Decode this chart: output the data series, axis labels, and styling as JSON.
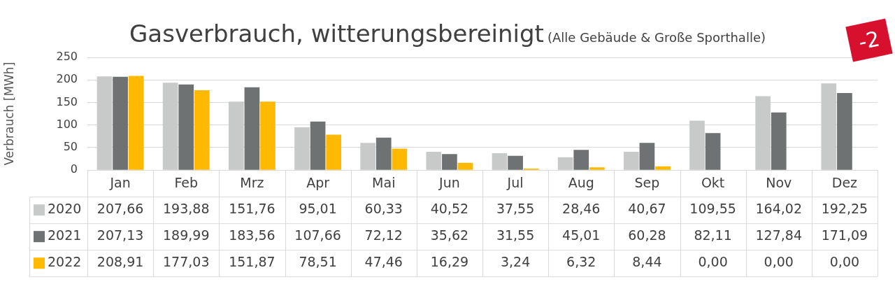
{
  "chart_data": {
    "type": "bar",
    "title": "Gasverbrauch, witterungsbereinigt",
    "subtitle": "(Alle Gebäude & Große Sporthalle)",
    "ylabel": "Verbrauch [MWh]",
    "categories": [
      "Jan",
      "Feb",
      "Mrz",
      "Apr",
      "Mai",
      "Jun",
      "Jul",
      "Aug",
      "Sep",
      "Okt",
      "Nov",
      "Dez"
    ],
    "series": [
      {
        "name": "2020",
        "color": "#c8c9c9",
        "values": [
          207.66,
          193.88,
          151.76,
          95.01,
          60.33,
          40.52,
          37.55,
          28.46,
          40.67,
          109.55,
          164.02,
          192.25
        ],
        "value_labels": [
          "207,66",
          "193,88",
          "151,76",
          "95,01",
          "60,33",
          "40,52",
          "37,55",
          "28,46",
          "40,67",
          "109,55",
          "164,02",
          "192,25"
        ]
      },
      {
        "name": "2021",
        "color": "#6f7272",
        "values": [
          207.13,
          189.99,
          183.56,
          107.66,
          72.12,
          35.62,
          31.55,
          45.01,
          60.28,
          82.11,
          127.84,
          171.09
        ],
        "value_labels": [
          "207,13",
          "189,99",
          "183,56",
          "107,66",
          "72,12",
          "35,62",
          "31,55",
          "45,01",
          "60,28",
          "82,11",
          "127,84",
          "171,09"
        ]
      },
      {
        "name": "2022",
        "color": "#ffb900",
        "values": [
          208.91,
          177.03,
          151.87,
          78.51,
          47.46,
          16.29,
          3.24,
          6.32,
          8.44,
          0,
          0,
          0
        ],
        "value_labels": [
          "208,91",
          "177,03",
          "151,87",
          "78,51",
          "47,46",
          "16,29",
          "3,24",
          "6,32",
          "8,44",
          "0,00",
          "0,00",
          "0,00"
        ]
      }
    ],
    "ylim": [
      0,
      250
    ],
    "yticks": [
      0,
      50,
      100,
      150,
      200,
      250
    ],
    "grid": "y",
    "legend": "bottom left",
    "annotations": [
      "-2"
    ]
  }
}
